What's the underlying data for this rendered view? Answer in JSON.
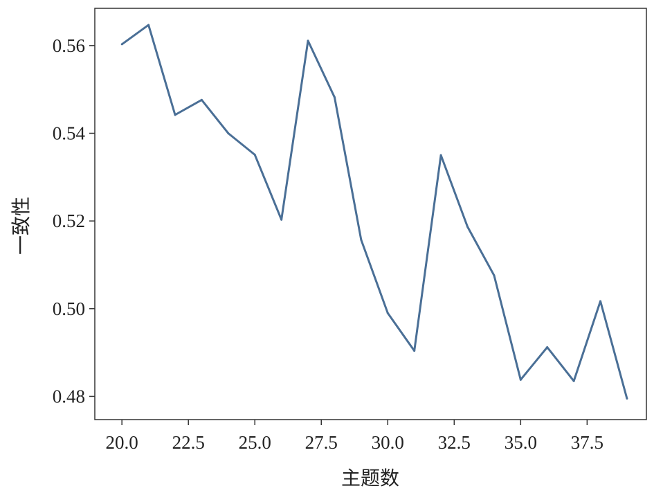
{
  "chart_data": {
    "type": "line",
    "title": "",
    "xlabel": "主题数",
    "ylabel": "一致性",
    "x": [
      20,
      21,
      22,
      23,
      24,
      25,
      26,
      27,
      28,
      29,
      30,
      31,
      32,
      33,
      34,
      35,
      36,
      37,
      38,
      39
    ],
    "series": [
      {
        "values": [
          0.5603,
          0.5647,
          0.5442,
          0.5476,
          0.54,
          0.5351,
          0.5203,
          0.5611,
          0.5482,
          0.5157,
          0.499,
          0.4904,
          0.535,
          0.5187,
          0.5076,
          0.4838,
          0.4912,
          0.4835,
          0.5017,
          0.4795
        ],
        "color": "#4a6f96"
      }
    ],
    "xlim": [
      18.98,
      39.73
    ],
    "ylim": [
      0.4747,
      0.5685
    ],
    "xticks": [
      20.0,
      22.5,
      25.0,
      27.5,
      30.0,
      32.5,
      35.0,
      37.5
    ],
    "xtick_labels": [
      "20.0",
      "22.5",
      "25.0",
      "27.5",
      "30.0",
      "32.5",
      "35.0",
      "37.5"
    ],
    "yticks": [
      0.48,
      0.5,
      0.52,
      0.54,
      0.56
    ],
    "ytick_labels": [
      "0.48",
      "0.50",
      "0.52",
      "0.54",
      "0.56"
    ],
    "grid": false,
    "legend": "none"
  }
}
